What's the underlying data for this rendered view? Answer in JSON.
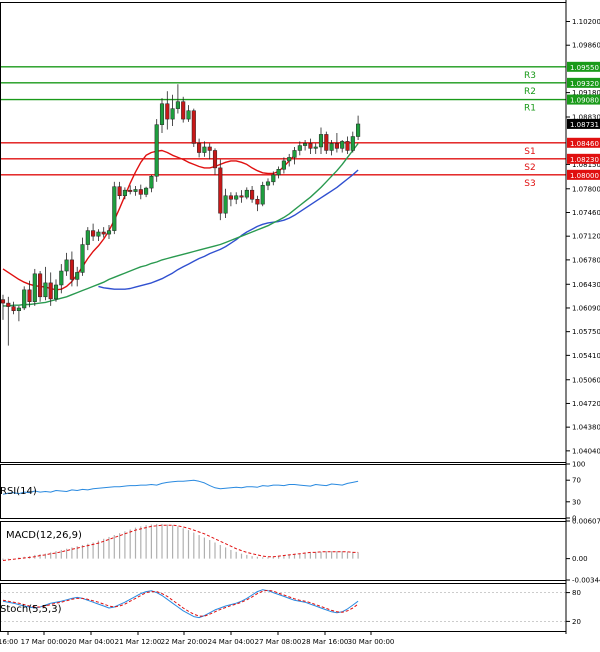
{
  "colors": {
    "resistance": "#1a9a1a",
    "support": "#e01010",
    "candle_up": "#1e9e3e",
    "candle_down": "#c81818",
    "ma_fast": "#e01010",
    "ma_mid": "#3050d0",
    "ma_slow": "#2a9a50",
    "rsi_line": "#2a8ae0",
    "macd_hist": "#b0b0b0",
    "macd_signal": "#e01010",
    "stoch_main": "#2a8ae0",
    "stoch_signal": "#e01010",
    "grid": "#dcdcdc",
    "axis": "#000000",
    "badge_text": "#ffffff",
    "current_badge": "#000000"
  },
  "chart_data": [
    {
      "type": "candlestick",
      "ylim": [
        1.0388,
        1.1048
      ],
      "y_ticks": [
        "1.10200",
        "1.09860",
        "1.09180",
        "1.08830",
        "1.08150",
        "1.07800",
        "1.07460",
        "1.07120",
        "1.06780",
        "1.06430",
        "1.06090",
        "1.05750",
        "1.05410",
        "1.05060",
        "1.04720",
        "1.04380",
        "1.04040"
      ],
      "current_price": "1.08731",
      "levels": [
        {
          "name": "R3",
          "value": "1.09550",
          "kind": "resistance"
        },
        {
          "name": "R2",
          "value": "1.09320",
          "kind": "resistance"
        },
        {
          "name": "R1",
          "value": "1.09080",
          "kind": "resistance"
        },
        {
          "name": "S1",
          "value": "1.08460",
          "kind": "support"
        },
        {
          "name": "S2",
          "value": "1.08230",
          "kind": "support"
        },
        {
          "name": "S3",
          "value": "1.08000",
          "kind": "support"
        }
      ],
      "candles": [
        [
          1.0621,
          1.0628,
          1.0592,
          1.0616
        ],
        [
          1.0616,
          1.0625,
          1.0555,
          1.0611
        ],
        [
          1.0611,
          1.0618,
          1.06,
          1.0605
        ],
        [
          1.0605,
          1.0612,
          1.059,
          1.0609
        ],
        [
          1.0609,
          1.064,
          1.0606,
          1.0635
        ],
        [
          1.0635,
          1.0648,
          1.061,
          1.0618
        ],
        [
          1.0618,
          1.0665,
          1.0612,
          1.0658
        ],
        [
          1.0658,
          1.0662,
          1.0618,
          1.0625
        ],
        [
          1.0625,
          1.0668,
          1.062,
          1.0645
        ],
        [
          1.0645,
          1.066,
          1.0612,
          1.0622
        ],
        [
          1.0622,
          1.065,
          1.0618,
          1.0642
        ],
        [
          1.0642,
          1.0672,
          1.063,
          1.0662
        ],
        [
          1.0662,
          1.0688,
          1.0655,
          1.0678
        ],
        [
          1.0678,
          1.069,
          1.064,
          1.065
        ],
        [
          1.065,
          1.0668,
          1.064,
          1.066
        ],
        [
          1.066,
          1.071,
          1.0655,
          1.07
        ],
        [
          1.07,
          1.0725,
          1.0692,
          1.072
        ],
        [
          1.072,
          1.073,
          1.0705,
          1.0712
        ],
        [
          1.0712,
          1.0722,
          1.0705,
          1.0718
        ],
        [
          1.0718,
          1.0725,
          1.071,
          1.0715
        ],
        [
          1.0715,
          1.0728,
          1.0708,
          1.072
        ],
        [
          1.072,
          1.079,
          1.0715,
          1.0783
        ],
        [
          1.0783,
          1.079,
          1.0765,
          1.077
        ],
        [
          1.077,
          1.0782,
          1.0765,
          1.0778
        ],
        [
          1.0778,
          1.0785,
          1.0772,
          1.0776
        ],
        [
          1.0776,
          1.0784,
          1.077,
          1.0779
        ],
        [
          1.0779,
          1.0786,
          1.0765,
          1.0772
        ],
        [
          1.0772,
          1.0783,
          1.0768,
          1.0781
        ],
        [
          1.0781,
          1.08,
          1.0775,
          1.0798
        ],
        [
          1.0798,
          1.088,
          1.079,
          1.0872
        ],
        [
          1.0872,
          1.091,
          1.086,
          1.0902
        ],
        [
          1.0902,
          1.092,
          1.0865,
          1.088
        ],
        [
          1.088,
          1.0915,
          1.087,
          1.0895
        ],
        [
          1.0895,
          1.093,
          1.0888,
          1.0905
        ],
        [
          1.0905,
          1.0912,
          1.0875,
          1.088
        ],
        [
          1.088,
          1.09,
          1.0876,
          1.0892
        ],
        [
          1.0892,
          1.0895,
          1.084,
          1.0845
        ],
        [
          1.0845,
          1.0852,
          1.0825,
          1.0832
        ],
        [
          1.0832,
          1.0848,
          1.0826,
          1.084
        ],
        [
          1.084,
          1.0845,
          1.0822,
          1.0835
        ],
        [
          1.0835,
          1.0838,
          1.08,
          1.081
        ],
        [
          1.081,
          1.0822,
          1.0735,
          1.0745
        ],
        [
          1.0745,
          1.078,
          1.0738,
          1.077
        ],
        [
          1.077,
          1.0775,
          1.0755,
          1.0765
        ],
        [
          1.0765,
          1.0775,
          1.0758,
          1.077
        ],
        [
          1.077,
          1.0778,
          1.076,
          1.0768
        ],
        [
          1.0768,
          1.0782,
          1.0765,
          1.0778
        ],
        [
          1.0778,
          1.0784,
          1.076,
          1.0765
        ],
        [
          1.0765,
          1.077,
          1.0748,
          1.0758
        ],
        [
          1.0758,
          1.079,
          1.0755,
          1.0785
        ],
        [
          1.0785,
          1.0795,
          1.0778,
          1.079
        ],
        [
          1.079,
          1.0805,
          1.0785,
          1.08
        ],
        [
          1.08,
          1.0812,
          1.0795,
          1.0808
        ],
        [
          1.0808,
          1.0825,
          1.0802,
          1.082
        ],
        [
          1.082,
          1.083,
          1.0812,
          1.0825
        ],
        [
          1.0825,
          1.084,
          1.0815,
          1.0835
        ],
        [
          1.0835,
          1.0848,
          1.0828,
          1.0842
        ],
        [
          1.0842,
          1.085,
          1.0835,
          1.0845
        ],
        [
          1.0845,
          1.0852,
          1.083,
          1.0838
        ],
        [
          1.0838,
          1.0845,
          1.083,
          1.084
        ],
        [
          1.084,
          1.0868,
          1.083,
          1.0858
        ],
        [
          1.0858,
          1.0862,
          1.083,
          1.0835
        ],
        [
          1.0835,
          1.085,
          1.0828,
          1.0845
        ],
        [
          1.0845,
          1.086,
          1.0832,
          1.0838
        ],
        [
          1.0838,
          1.085,
          1.0832,
          1.0848
        ],
        [
          1.0848,
          1.0855,
          1.083,
          1.0835
        ],
        [
          1.0835,
          1.0862,
          1.0832,
          1.0855
        ],
        [
          1.0855,
          1.0885,
          1.085,
          1.0873
        ]
      ],
      "ma_fast": [
        1.0665,
        1.066,
        1.0655,
        1.065,
        1.0646,
        1.0643,
        1.0641,
        1.064,
        1.0639,
        1.0637,
        1.0635,
        1.0636,
        1.064,
        1.0647,
        1.0657,
        1.0668,
        1.068,
        1.069,
        1.0698,
        1.0708,
        1.072,
        1.0735,
        1.0752,
        1.077,
        1.0788,
        1.0804,
        1.0818,
        1.0828,
        1.0832,
        1.0834,
        1.0835,
        1.0832,
        1.0828,
        1.0825,
        1.0822,
        1.0818,
        1.0815,
        1.0812,
        1.081,
        1.081,
        1.0812,
        1.0815,
        1.0818,
        1.082,
        1.082,
        1.0818,
        1.0815,
        1.081,
        1.0806,
        1.0803,
        1.0802,
        1.0802,
        1.0805,
        1.0812,
        1.082,
        1.0828
      ],
      "ma_mid": [
        1.064,
        1.0638,
        1.0637,
        1.0636,
        1.0636,
        1.0636,
        1.0637,
        1.0639,
        1.0641,
        1.0643,
        1.0645,
        1.0648,
        1.0651,
        1.0655,
        1.0659,
        1.0664,
        1.0668,
        1.0672,
        1.0676,
        1.068,
        1.0683,
        1.0687,
        1.069,
        1.0693,
        1.0697,
        1.0702,
        1.0707,
        1.0713,
        1.0718,
        1.0722,
        1.0726,
        1.0729,
        1.0731,
        1.0732,
        1.0733,
        1.0735,
        1.0738,
        1.0742,
        1.0747,
        1.0752,
        1.0757,
        1.0762,
        1.0767,
        1.0772,
        1.0777,
        1.0782,
        1.0788,
        1.0794,
        1.08,
        1.0807
      ],
      "ma_slow": [
        1.0612,
        1.0612,
        1.0613,
        1.0613,
        1.0614,
        1.0614,
        1.0615,
        1.0616,
        1.0617,
        1.0619,
        1.0621,
        1.0623,
        1.0625,
        1.0628,
        1.0631,
        1.0634,
        1.0637,
        1.064,
        1.0643,
        1.0646,
        1.065,
        1.0653,
        1.0656,
        1.0659,
        1.0662,
        1.0665,
        1.0668,
        1.067,
        1.0673,
        1.0675,
        1.0678,
        1.068,
        1.0682,
        1.0684,
        1.0686,
        1.0688,
        1.069,
        1.0692,
        1.0694,
        1.0696,
        1.0698,
        1.07,
        1.0703,
        1.0706,
        1.0709,
        1.0712,
        1.0715,
        1.0718,
        1.0721,
        1.0724,
        1.0727,
        1.0731,
        1.0735,
        1.0739,
        1.0744,
        1.075,
        1.0756,
        1.0762,
        1.0768,
        1.0775,
        1.0782,
        1.079,
        1.0798,
        1.0806,
        1.0815,
        1.0825,
        1.0835,
        1.0845
      ]
    },
    {
      "type": "line",
      "label": "RSI(14)",
      "ylim": [
        0,
        100
      ],
      "y_ticks": [
        "100",
        "70",
        "30",
        "0"
      ],
      "values": [
        44,
        46,
        47,
        45,
        48,
        47,
        50,
        48,
        49,
        48,
        51,
        50,
        49,
        52,
        51,
        53,
        52,
        54,
        55,
        56,
        57,
        58,
        58,
        59,
        60,
        60,
        61,
        61,
        62,
        61,
        64,
        66,
        67,
        68,
        68,
        69,
        70,
        68,
        65,
        60,
        56,
        54,
        55,
        56,
        57,
        56,
        58,
        58,
        57,
        60,
        59,
        61,
        61,
        60,
        62,
        62,
        61,
        60,
        59,
        62,
        61,
        60,
        63,
        62,
        61,
        64,
        66,
        68
      ]
    },
    {
      "type": "bar",
      "label": "MACD(12,26,9)",
      "ylim": [
        -0.003449,
        0.00607
      ],
      "y_ticks": [
        "0.00607",
        "0.00",
        "-0.003449"
      ],
      "values": [
        -0.0002,
        -0.0001,
        0.0,
        0.0002,
        0.0003,
        0.0004,
        0.0006,
        0.0007,
        0.0008,
        0.001,
        0.0012,
        0.0014,
        0.0016,
        0.0018,
        0.002,
        0.0022,
        0.0024,
        0.0026,
        0.0029,
        0.0032,
        0.0035,
        0.0038,
        0.0041,
        0.0044,
        0.0047,
        0.005,
        0.0052,
        0.0054,
        0.0055,
        0.0056,
        0.0056,
        0.0055,
        0.0054,
        0.0052,
        0.0049,
        0.0046,
        0.0042,
        0.0038,
        0.0034,
        0.003,
        0.0026,
        0.0022,
        0.0018,
        0.0014,
        0.0011,
        0.0008,
        0.0006,
        0.0004,
        0.0003,
        0.0002,
        0.0002,
        0.0003,
        0.0004,
        0.0005,
        0.0006,
        0.0007,
        0.0008,
        0.0009,
        0.001,
        0.0011,
        0.0011,
        0.0012,
        0.0012,
        0.0012,
        0.0012,
        0.0011,
        0.0011,
        0.001
      ],
      "signal": [
        -0.0003,
        -0.0002,
        -0.0001,
        0.0,
        0.0001,
        0.0002,
        0.0003,
        0.0005,
        0.0006,
        0.0008,
        0.0009,
        0.0011,
        0.0013,
        0.0015,
        0.0017,
        0.0019,
        0.0021,
        0.0023,
        0.0025,
        0.0028,
        0.0031,
        0.0034,
        0.0037,
        0.004,
        0.0043,
        0.0046,
        0.0048,
        0.005,
        0.0052,
        0.0053,
        0.0054,
        0.0054,
        0.0054,
        0.0053,
        0.0051,
        0.0049,
        0.0046,
        0.0043,
        0.004,
        0.0036,
        0.0032,
        0.0028,
        0.0024,
        0.002,
        0.0016,
        0.0013,
        0.001,
        0.0008,
        0.0006,
        0.0004,
        0.0003,
        0.0003,
        0.0004,
        0.0005,
        0.0006,
        0.0007,
        0.0008,
        0.0009,
        0.001,
        0.001,
        0.0011,
        0.0011,
        0.0011,
        0.0011,
        0.0011,
        0.0011,
        0.001,
        0.001
      ]
    },
    {
      "type": "line",
      "label": "Stoch(5,5,3)",
      "ylim": [
        0,
        100
      ],
      "y_ticks": [
        "80",
        "20"
      ],
      "values": [
        62,
        60,
        58,
        55,
        52,
        50,
        48,
        50,
        54,
        58,
        60,
        62,
        65,
        68,
        70,
        68,
        64,
        60,
        56,
        52,
        48,
        50,
        55,
        60,
        66,
        72,
        78,
        82,
        84,
        80,
        74,
        66,
        58,
        50,
        42,
        36,
        30,
        28,
        32,
        38,
        44,
        48,
        52,
        55,
        58,
        62,
        68,
        75,
        82,
        86,
        84,
        80,
        76,
        72,
        68,
        64,
        62,
        60,
        56,
        52,
        48,
        44,
        40,
        38,
        40,
        46,
        54,
        62
      ],
      "signal": [
        64,
        62,
        60,
        58,
        55,
        52,
        50,
        50,
        52,
        55,
        58,
        60,
        63,
        66,
        68,
        68,
        66,
        63,
        60,
        56,
        52,
        50,
        52,
        56,
        62,
        68,
        74,
        80,
        82,
        82,
        78,
        72,
        64,
        56,
        48,
        41,
        35,
        31,
        31,
        35,
        40,
        45,
        49,
        53,
        56,
        60,
        65,
        71,
        78,
        83,
        85,
        83,
        79,
        75,
        71,
        67,
        64,
        62,
        59,
        55,
        51,
        47,
        43,
        40,
        39,
        42,
        48,
        56
      ]
    },
    {
      "type": "x-axis",
      "x_ticks": [
        "16:00",
        "17 Mar 00:00",
        "20 Mar 04:00",
        "21 Mar 12:00",
        "22 Mar 20:00",
        "24 Mar 04:00",
        "27 Mar 08:00",
        "28 Mar 16:00",
        "30 Mar 00:00"
      ]
    }
  ]
}
